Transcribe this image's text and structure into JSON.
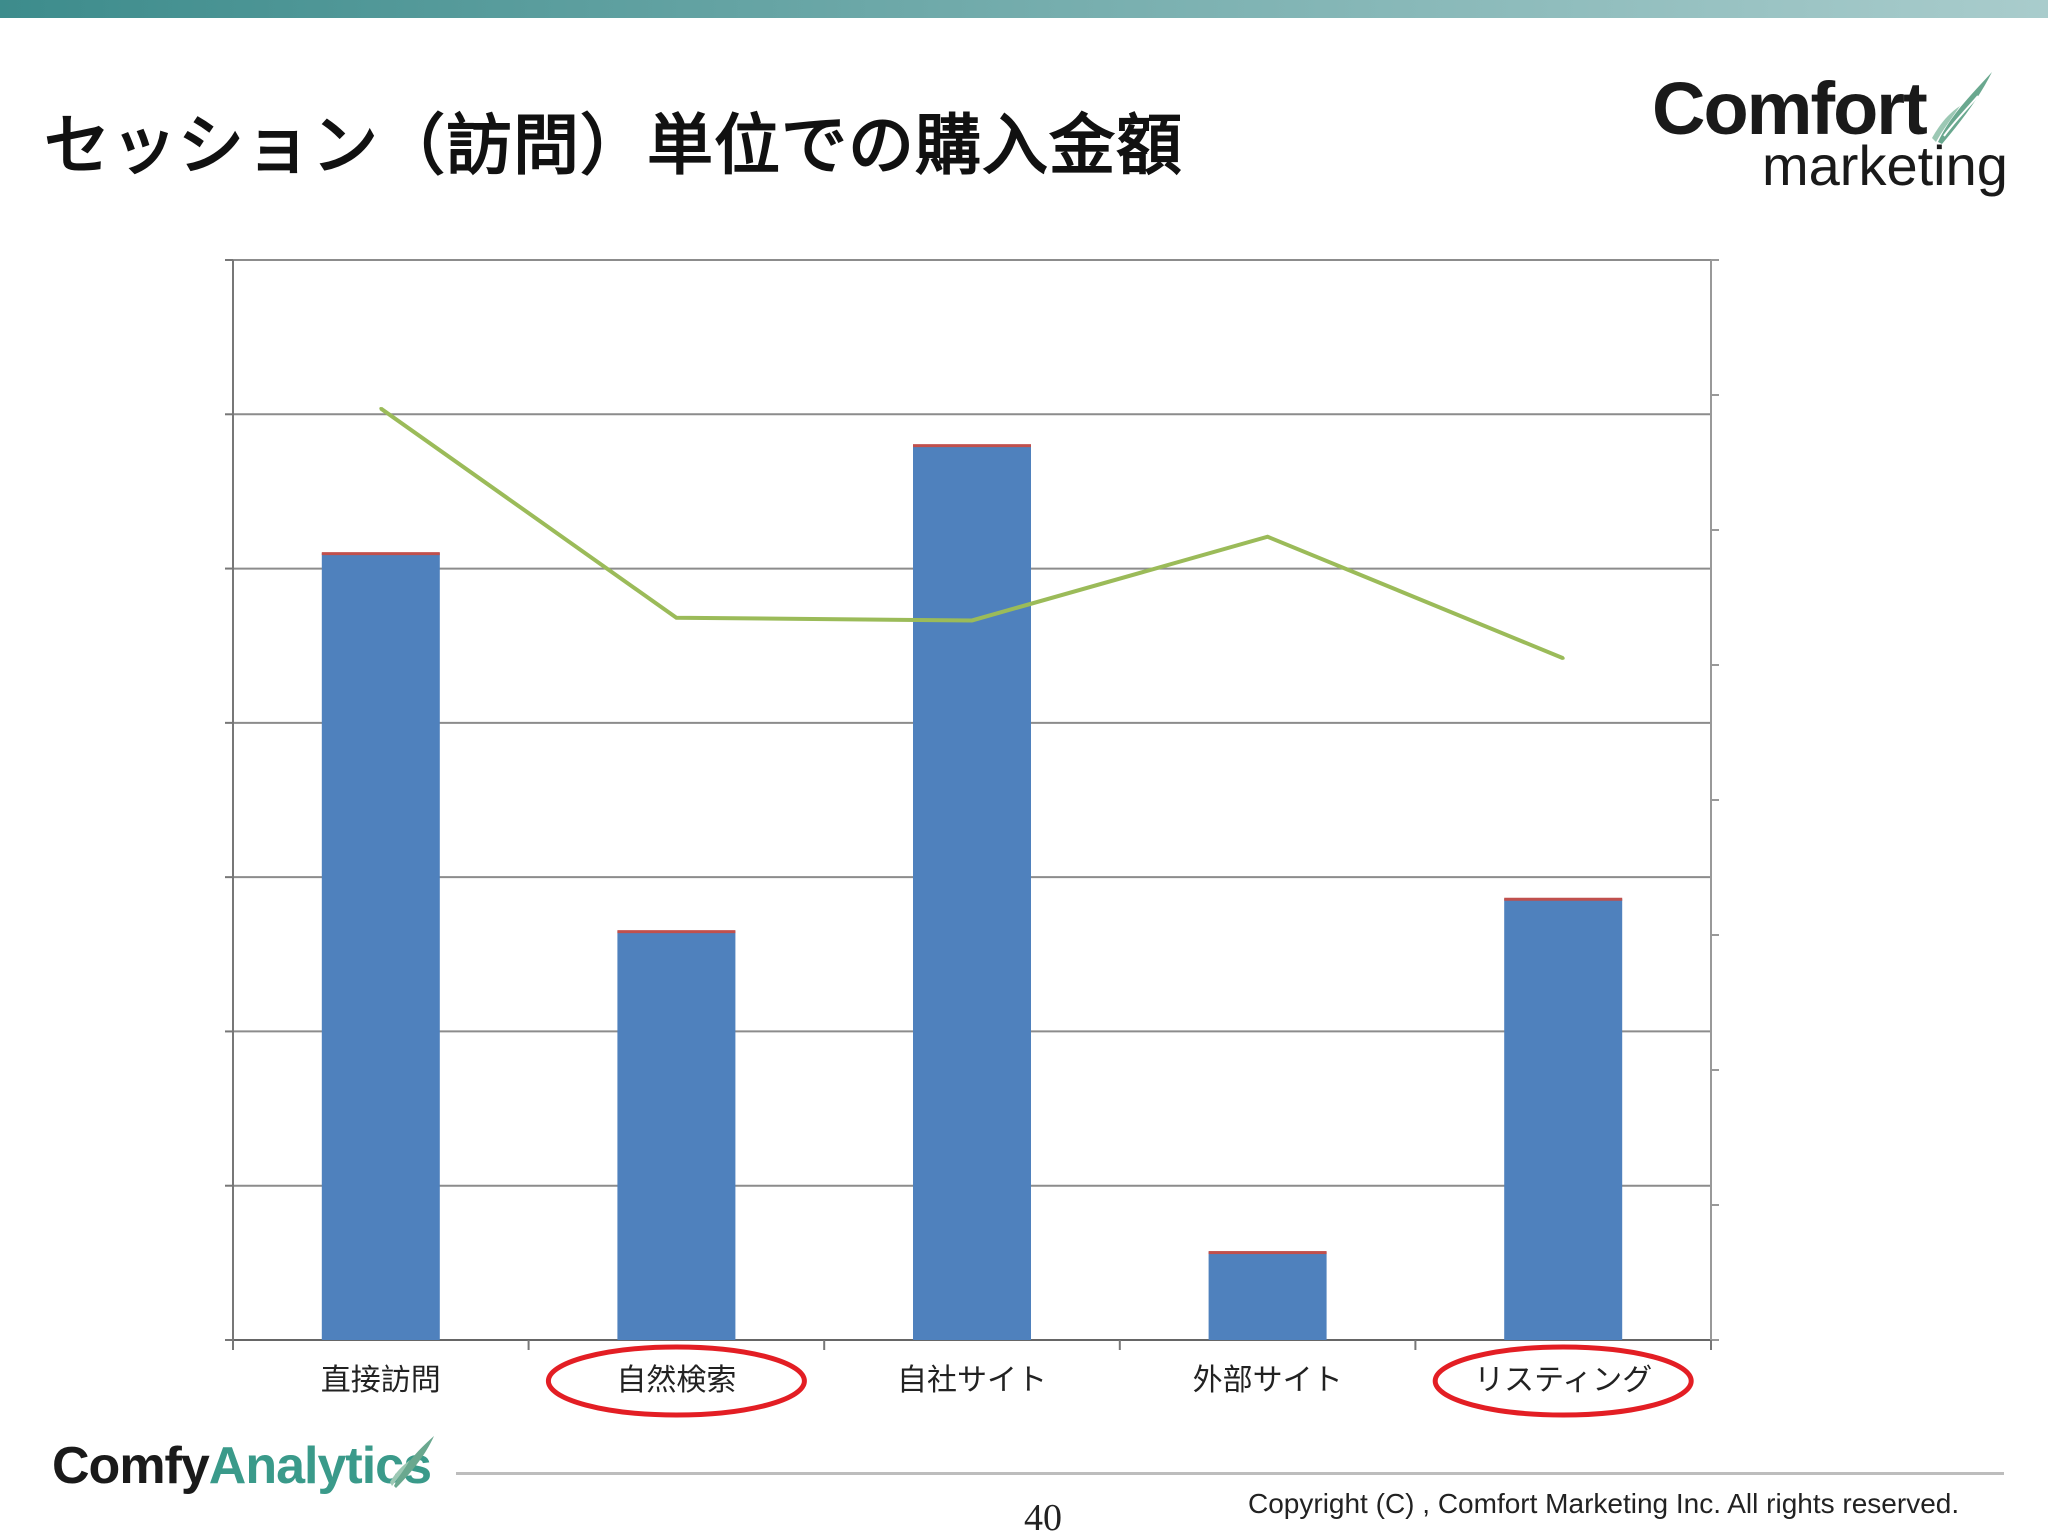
{
  "slide": {
    "title": "セッション（訪問）単位での購入金額",
    "page_number": "40",
    "copyright": "Copyright (C) , Comfort Marketing Inc. All rights reserved."
  },
  "logo": {
    "word1": "Comfort",
    "word2": "marketing"
  },
  "footer_logo": {
    "part1": "Comfy",
    "part2": "Analytics"
  },
  "colors": {
    "bar": "#4f81bd",
    "bar_top": "#c0504d",
    "line": "#9bbb59",
    "highlight": "#e31e24",
    "grid": "#8c8c8c"
  },
  "chart_data": {
    "type": "bar",
    "categories": [
      "直接訪問",
      "自然検索",
      "自社サイト",
      "外部サイト",
      "リスティング"
    ],
    "series": [
      {
        "values": [
          5.1,
          2.65,
          5.8,
          0.57,
          2.86
        ],
        "type": "bar"
      },
      {
        "values": [
          6.9,
          5.35,
          5.33,
          5.95,
          5.05
        ],
        "type": "line",
        "axis": "secondary"
      }
    ],
    "ylim": [
      0,
      7
    ],
    "y2lim": [
      0,
      8
    ],
    "highlighted_categories": [
      "自然検索",
      "リスティング"
    ],
    "grid": true,
    "legend": "none",
    "xlabel": "",
    "ylabel": ""
  }
}
